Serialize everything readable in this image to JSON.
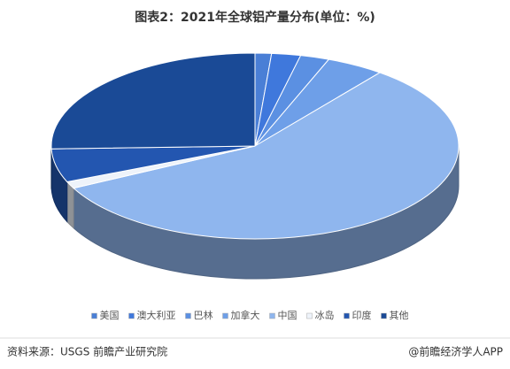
{
  "chart_data": {
    "type": "pie",
    "title": "图表2：2021年全球铝产量分布(单位：%)",
    "categories": [
      "美国",
      "澳大利亚",
      "巴林",
      "加拿大",
      "中国",
      "冰岛",
      "印度",
      "其他"
    ],
    "values": [
      1.3,
      2.3,
      2.3,
      4.6,
      57,
      1.2,
      5.8,
      25.5
    ],
    "colors": [
      "#4a7fd6",
      "#3f78dc",
      "#5b90e2",
      "#6e9fe8",
      "#8fb6ee",
      "#eef3fa",
      "#2356b0",
      "#1a4a96"
    ],
    "source": "资料来源：USGS 前瞻产业研究院",
    "credit": "@前瞻经济学人APP"
  }
}
